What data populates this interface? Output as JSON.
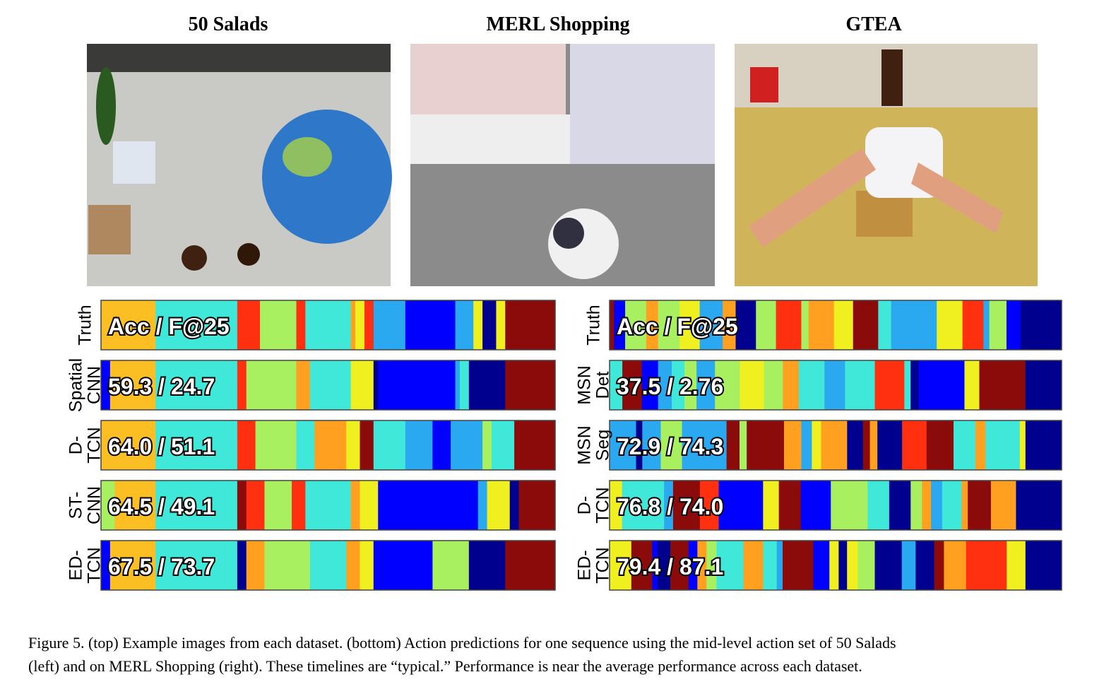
{
  "header": {
    "titles": [
      "50 Salads",
      "MERL Shopping",
      "GTEA"
    ]
  },
  "panels": [
    {
      "rows": [
        {
          "label": [
            "Truth"
          ],
          "score": "Acc / F@25"
        },
        {
          "label": [
            "Spatial",
            "CNN"
          ],
          "score": "59.3 / 24.7"
        },
        {
          "label": [
            "D-",
            "TCN"
          ],
          "score": "64.0 / 51.1"
        },
        {
          "label": [
            "ST-",
            "CNN"
          ],
          "score": "64.5 / 49.1"
        },
        {
          "label": [
            "ED-",
            "TCN"
          ],
          "score": "67.5 / 73.7"
        }
      ]
    },
    {
      "rows": [
        {
          "label": [
            "Truth"
          ],
          "score": "Acc / F@25"
        },
        {
          "label": [
            "MSN",
            "Det"
          ],
          "score": "37.5 / 2.76"
        },
        {
          "label": [
            "MSN",
            "Seg"
          ],
          "score": "72.9 / 74.3"
        },
        {
          "label": [
            "D-",
            "TCN"
          ],
          "score": "76.8 / 74.0"
        },
        {
          "label": [
            "ED-",
            "TCN"
          ],
          "score": "79.4 / 87.1"
        }
      ]
    }
  ],
  "caption": [
    "Figure 5. (top) Example images from each dataset. (bottom) Action predictions for one sequence using the mid-level action set of 50 Salads",
    "(left) and on MERL Shopping (right). These timelines are “typical.” Performance is near the average performance across each dataset."
  ]
}
